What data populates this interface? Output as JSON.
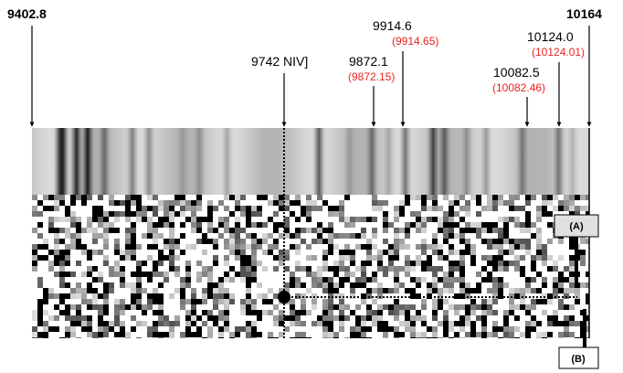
{
  "labels": {
    "left_edge": "9402.8",
    "right_edge": "10164",
    "niv": "9742 NIV]",
    "lines": [
      {
        "observed": "9872.1",
        "lab": "(9872.15)"
      },
      {
        "observed": "9914.6",
        "lab": "(9914.65)"
      },
      {
        "observed": "10082.5",
        "lab": "(10082.46)"
      },
      {
        "observed": "10124.0",
        "lab": "(10124.01)"
      }
    ],
    "box_a": "(A)",
    "box_b": "(B)"
  }
}
